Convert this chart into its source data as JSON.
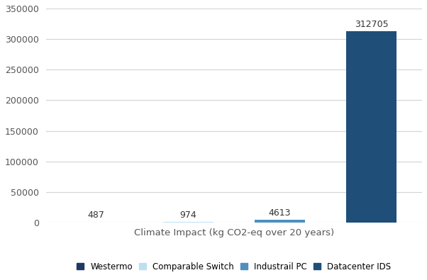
{
  "categories": [
    "Westermo",
    "Comparable Switch",
    "Industrail PC",
    "Datacenter IDS"
  ],
  "values": [
    487,
    974,
    4613,
    312705
  ],
  "bar_colors": [
    "#1f3864",
    "#bde0f0",
    "#4e8fbe",
    "#1f4e79"
  ],
  "bar_labels": [
    "487",
    "974",
    "4613",
    "312705"
  ],
  "xlabel": "Climate Impact (kg CO2-eq over 20 years)",
  "ylim": [
    0,
    350000
  ],
  "yticks": [
    0,
    50000,
    100000,
    150000,
    200000,
    250000,
    300000,
    350000
  ],
  "legend_labels": [
    "Westermo",
    "Comparable Switch",
    "Industrail PC",
    "Datacenter IDS"
  ],
  "legend_colors": [
    "#1f3864",
    "#bde0f0",
    "#4e8fbe",
    "#1f4e79"
  ],
  "background_color": "#ffffff",
  "grid_color": "#d3d3d3",
  "label_fontsize": 9,
  "tick_fontsize": 9,
  "xlabel_fontsize": 9.5,
  "bar_width": 0.55,
  "xlim": [
    -0.55,
    3.55
  ]
}
